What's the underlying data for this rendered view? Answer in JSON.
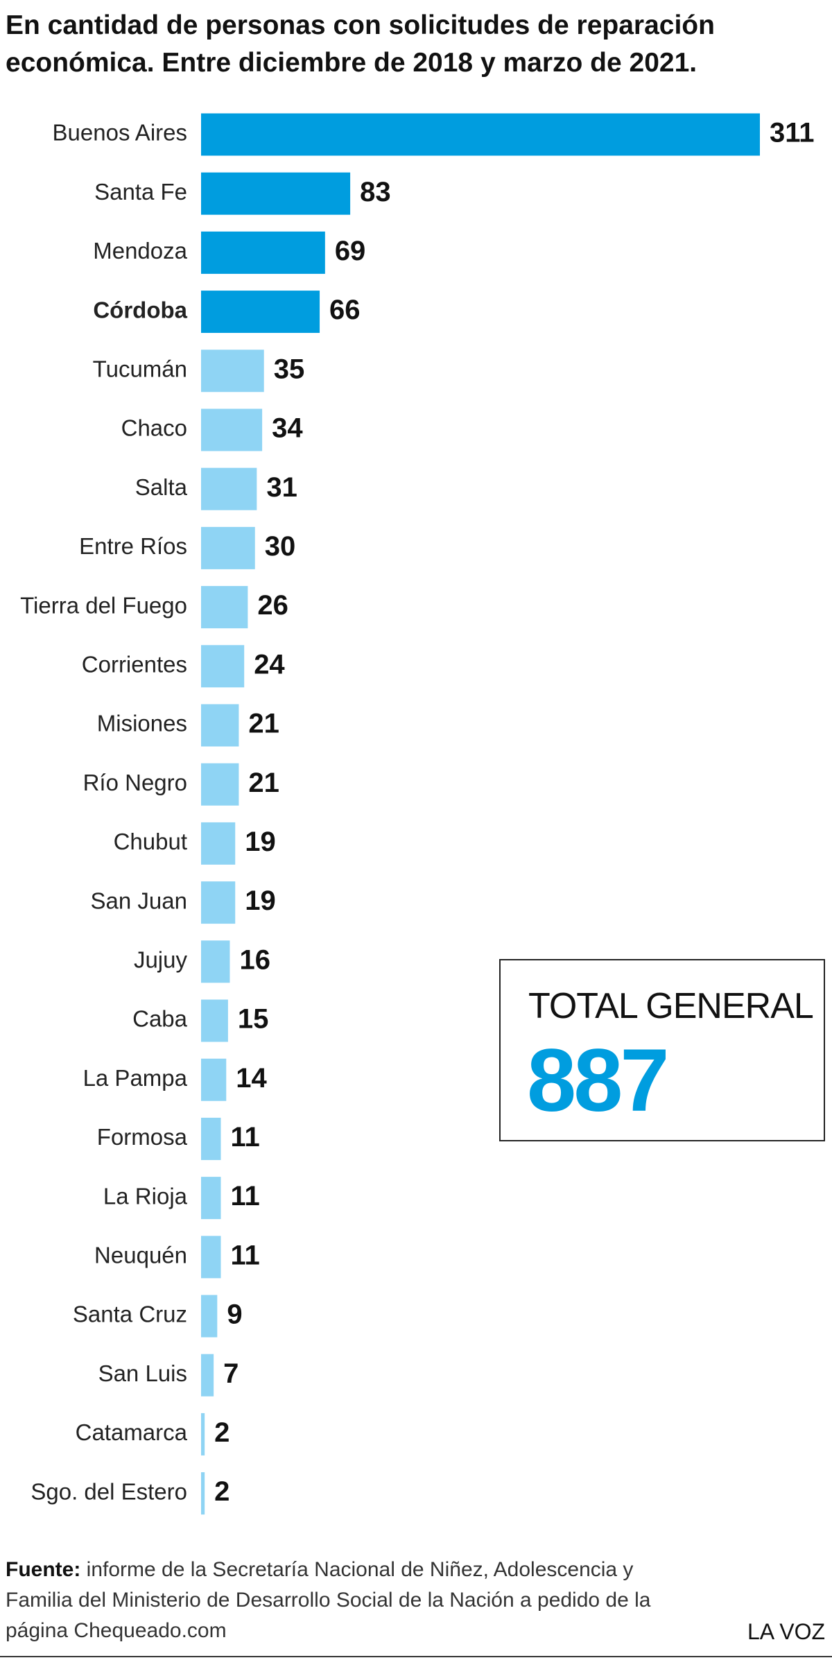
{
  "chart_data": {
    "type": "hbar",
    "title": "En cantidad de personas con solicitudes de reparación económica. Entre diciembre de 2018 y marzo de 2021.",
    "categories": [
      "Buenos Aires",
      "Santa Fe",
      "Mendoza",
      "Córdoba",
      "Tucumán",
      "Chaco",
      "Salta",
      "Entre Ríos",
      "Tierra del Fuego",
      "Corrientes",
      "Misiones",
      "Río Negro",
      "Chubut",
      "San Juan",
      "Jujuy",
      "Caba",
      "La Pampa",
      "Formosa",
      "La Rioja",
      "Neuquén",
      "Santa Cruz",
      "San Luis",
      "Catamarca",
      "Sgo. del Estero"
    ],
    "values": [
      311,
      83,
      69,
      66,
      35,
      34,
      31,
      30,
      26,
      24,
      21,
      21,
      19,
      19,
      16,
      15,
      14,
      11,
      11,
      11,
      9,
      7,
      2,
      2
    ],
    "colors": [
      "#009ddf",
      "#009ddf",
      "#009ddf",
      "#009ddf",
      "#8fd4f4",
      "#8fd4f4",
      "#8fd4f4",
      "#8fd4f4",
      "#8fd4f4",
      "#8fd4f4",
      "#8fd4f4",
      "#8fd4f4",
      "#8fd4f4",
      "#8fd4f4",
      "#8fd4f4",
      "#8fd4f4",
      "#8fd4f4",
      "#8fd4f4",
      "#8fd4f4",
      "#8fd4f4",
      "#8fd4f4",
      "#8fd4f4",
      "#8fd4f4",
      "#8fd4f4"
    ],
    "emphasis": "Córdoba"
  },
  "total": {
    "label": "TOTAL GENERAL",
    "value": 887,
    "color": "#009ddf"
  },
  "footer": {
    "source_label": "Fuente:",
    "source": "informe de la Secretaría Nacional de Niñez, Adolescencia y Familia del Ministerio de Desarrollo Social de la Nación a pedido de la página Chequeado.com",
    "brand": "LA VOZ"
  }
}
